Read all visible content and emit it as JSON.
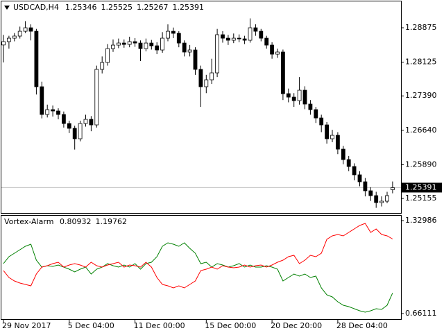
{
  "chart_data": [
    {
      "type": "candlestick",
      "title": "USDCAD,H4",
      "open": [
        1.285,
        1.28573,
        1.28648,
        1.28694,
        1.28799,
        1.28875,
        1.28799,
        1.2759,
        1.26985,
        1.27091,
        1.27061,
        1.26985,
        1.26788,
        1.26683,
        1.26456,
        1.26788,
        1.26879,
        1.26758,
        1.27968,
        1.28119,
        1.28421,
        1.28497,
        1.28542,
        1.28512,
        1.28573,
        1.28542,
        1.28421,
        1.28542,
        1.28482,
        1.28391,
        1.28648,
        1.28799,
        1.28754,
        1.28542,
        1.28346,
        1.28391,
        1.27968,
        1.2759,
        1.27741,
        1.27892,
        1.28724,
        1.28648,
        1.28603,
        1.28648,
        1.28633,
        1.28603,
        1.28875,
        1.28799,
        1.28648,
        1.28497,
        1.283,
        1.28346,
        1.27439,
        1.27363,
        1.27287,
        1.27514,
        1.27212,
        1.27091,
        1.26909,
        1.26758,
        1.26456,
        1.26531,
        1.26229,
        1.26002,
        1.25851,
        1.2567,
        1.25518,
        1.25322,
        1.25216,
        1.25065,
        1.25095,
        1.25346
      ],
      "high": [
        1.2872,
        1.287,
        1.2876,
        1.289,
        1.2902,
        1.2895,
        1.2885,
        1.277,
        1.272,
        1.2718,
        1.2712,
        1.2705,
        1.2685,
        1.2674,
        1.2685,
        1.2698,
        1.2695,
        1.2805,
        1.2825,
        1.2852,
        1.2862,
        1.2864,
        1.2862,
        1.2868,
        1.2865,
        1.286,
        1.2864,
        1.2861,
        1.2856,
        1.2878,
        1.2895,
        1.2888,
        1.288,
        1.286,
        1.285,
        1.2845,
        1.2805,
        1.2785,
        1.282,
        1.2885,
        1.288,
        1.2872,
        1.2875,
        1.2873,
        1.287,
        1.2908,
        1.2895,
        1.2885,
        1.287,
        1.2856,
        1.2842,
        1.284,
        1.2755,
        1.2745,
        1.278,
        1.276,
        1.273,
        1.2715,
        1.2698,
        1.2682,
        1.2665,
        1.266,
        1.263,
        1.2608,
        1.2592,
        1.2575,
        1.256,
        1.254,
        1.253,
        1.252,
        1.253,
        1.25525
      ],
      "low": [
        1.2812,
        1.2842,
        1.2858,
        1.2864,
        1.2876,
        1.286,
        1.2742,
        1.269,
        1.2692,
        1.2694,
        1.2688,
        1.267,
        1.2658,
        1.2622,
        1.264,
        1.2672,
        1.2662,
        1.267,
        1.2788,
        1.2805,
        1.2835,
        1.2843,
        1.2844,
        1.2845,
        1.2846,
        1.2815,
        1.2836,
        1.284,
        1.283,
        1.2833,
        1.2858,
        1.2865,
        1.2845,
        1.2825,
        1.2825,
        1.2785,
        1.2715,
        1.2745,
        1.2765,
        1.278,
        1.2855,
        1.285,
        1.2854,
        1.2856,
        1.2852,
        1.2855,
        1.287,
        1.2858,
        1.2842,
        1.282,
        1.2822,
        1.273,
        1.2725,
        1.2715,
        1.272,
        1.271,
        1.2698,
        1.268,
        1.266,
        1.2635,
        1.2638,
        1.2612,
        1.259,
        1.2575,
        1.2555,
        1.2542,
        1.252,
        1.251,
        1.2495,
        1.2498,
        1.2505,
        1.25267
      ],
      "close": [
        1.28573,
        1.28648,
        1.28694,
        1.28799,
        1.28875,
        1.28799,
        1.2759,
        1.26985,
        1.27091,
        1.27061,
        1.26985,
        1.26788,
        1.26683,
        1.26456,
        1.26788,
        1.26879,
        1.26758,
        1.27968,
        1.28119,
        1.28421,
        1.28497,
        1.28542,
        1.28512,
        1.28573,
        1.28542,
        1.28421,
        1.28542,
        1.28482,
        1.28391,
        1.28648,
        1.28799,
        1.28754,
        1.28542,
        1.28346,
        1.28391,
        1.27968,
        1.2759,
        1.27741,
        1.27892,
        1.28724,
        1.28648,
        1.28603,
        1.28648,
        1.28633,
        1.28603,
        1.28875,
        1.28799,
        1.28648,
        1.28497,
        1.283,
        1.28346,
        1.27439,
        1.27363,
        1.27287,
        1.27514,
        1.27212,
        1.27091,
        1.26909,
        1.26758,
        1.26456,
        1.26531,
        1.26229,
        1.26002,
        1.25851,
        1.2567,
        1.25518,
        1.25322,
        1.25216,
        1.25065,
        1.25095,
        1.25216,
        1.25391
      ],
      "ylim": [
        1.24838,
        1.29435
      ],
      "yticks": [
        1.28875,
        1.28125,
        {
          "value": 1.2739,
          "label": "1.27390"
        },
        {
          "value": 1.2664,
          "label": "1.26640"
        },
        {
          "value": 1.2589,
          "label": "1.25890"
        },
        1.25155
      ],
      "xticks": [
        {
          "value": 0,
          "label": "29 Nov 2017"
        },
        {
          "value": 12,
          "label": "5 Dec 04:00"
        },
        {
          "value": 24,
          "label": "11 Dec 00:00"
        },
        {
          "value": 37,
          "label": "15 Dec 00:00"
        },
        {
          "value": 49,
          "label": "20 Dec 20:00"
        },
        {
          "value": 61,
          "label": "28 Dec 04:00"
        }
      ]
    },
    {
      "type": "line",
      "title": "Vortex-Alarm",
      "series": [
        {
          "color": "#008000",
          "values": [
            1.0205,
            1.0704,
            1.0953,
            1.1203,
            1.1452,
            1.1602,
            1.0454,
            0.9955,
            1.0055,
            1.0005,
            1.0105,
            0.9955,
            0.9805,
            0.9606,
            0.9805,
            0.9955,
            0.9456,
            0.9805,
            0.9955,
            1.0205,
            1.0055,
            0.9955,
            1.0105,
            0.9955,
            1.0205,
            0.9805,
            1.0205,
            1.0304,
            1.0704,
            1.1452,
            1.1702,
            1.1602,
            1.1452,
            1.1702,
            1.1302,
            1.0953,
            1.0205,
            1.0304,
            0.9955,
            1.0205,
            1.0105,
            0.9955,
            1.0055,
            1.0205,
            0.9955,
            1.0105,
            0.9955,
            0.9955,
            1.0055,
            0.9955,
            0.9805,
            0.8957,
            0.9206,
            0.9456,
            0.9306,
            0.9456,
            0.9206,
            0.9306,
            0.8458,
            0.7959,
            0.781,
            0.746,
            0.721,
            0.7111,
            0.6961,
            0.6811,
            0.6711,
            0.6811,
            0.6961,
            0.6911,
            0.721,
            0.80932
          ]
        },
        {
          "color": "#ff0000",
          "values": [
            0.9705,
            0.9206,
            0.8957,
            0.8807,
            0.8707,
            0.8608,
            0.9456,
            0.9955,
            1.0055,
            1.0205,
            1.0304,
            0.9955,
            1.0105,
            1.0205,
            1.0105,
            0.9955,
            1.0304,
            1.0055,
            0.9955,
            1.0105,
            1.0205,
            1.0304,
            0.9955,
            1.0105,
            1.0055,
            0.9955,
            1.0304,
            0.9955,
            0.9206,
            0.8707,
            0.8608,
            0.8458,
            0.8608,
            0.8458,
            0.8707,
            0.8957,
            0.9705,
            0.9805,
            0.9955,
            0.9805,
            1.0055,
            0.9955,
            0.9905,
            0.9955,
            1.0105,
            0.9955,
            1.0055,
            1.0105,
            0.9955,
            1.0105,
            1.0304,
            1.0454,
            1.0704,
            1.0803,
            1.0205,
            1.0454,
            1.0803,
            1.0704,
            1.0953,
            1.1951,
            1.2201,
            1.2301,
            1.2201,
            1.245,
            1.27,
            1.2949,
            1.3099,
            1.245,
            1.27,
            1.2301,
            1.2201,
            1.19762
          ]
        }
      ],
      "ylim": [
        0.6212,
        1.3698
      ],
      "yticks": [
        1.32986,
        0.66111
      ]
    }
  ]
}
